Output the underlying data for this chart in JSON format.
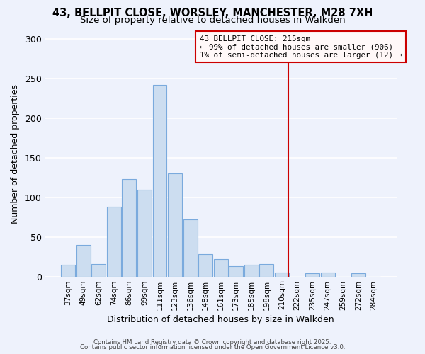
{
  "title_line1": "43, BELLPIT CLOSE, WORSLEY, MANCHESTER, M28 7XH",
  "title_line2": "Size of property relative to detached houses in Walkden",
  "xlabel": "Distribution of detached houses by size in Walkden",
  "ylabel": "Number of detached properties",
  "bar_labels": [
    "37sqm",
    "49sqm",
    "62sqm",
    "74sqm",
    "86sqm",
    "99sqm",
    "111sqm",
    "123sqm",
    "136sqm",
    "148sqm",
    "161sqm",
    "173sqm",
    "185sqm",
    "198sqm",
    "210sqm",
    "222sqm",
    "235sqm",
    "247sqm",
    "259sqm",
    "272sqm",
    "284sqm"
  ],
  "bar_values": [
    15,
    40,
    16,
    88,
    123,
    110,
    242,
    130,
    72,
    28,
    22,
    13,
    15,
    16,
    5,
    0,
    4,
    5,
    0,
    4,
    0
  ],
  "bar_color": "#ccddf0",
  "bar_edge_color": "#7aaadd",
  "ylim": [
    0,
    310
  ],
  "yticks": [
    0,
    50,
    100,
    150,
    200,
    250,
    300
  ],
  "vline_color": "#cc0000",
  "annotation_title": "43 BELLPIT CLOSE: 215sqm",
  "annotation_line1": "← 99% of detached houses are smaller (906)",
  "annotation_line2": "1% of semi-detached houses are larger (12) →",
  "annotation_box_facecolor": "#fff8f8",
  "annotation_box_edge": "#cc0000",
  "footer_line1": "Contains HM Land Registry data © Crown copyright and database right 2025.",
  "footer_line2": "Contains public sector information licensed under the Open Government Licence v3.0.",
  "bg_color": "#eef2fc",
  "grid_color": "#ffffff"
}
